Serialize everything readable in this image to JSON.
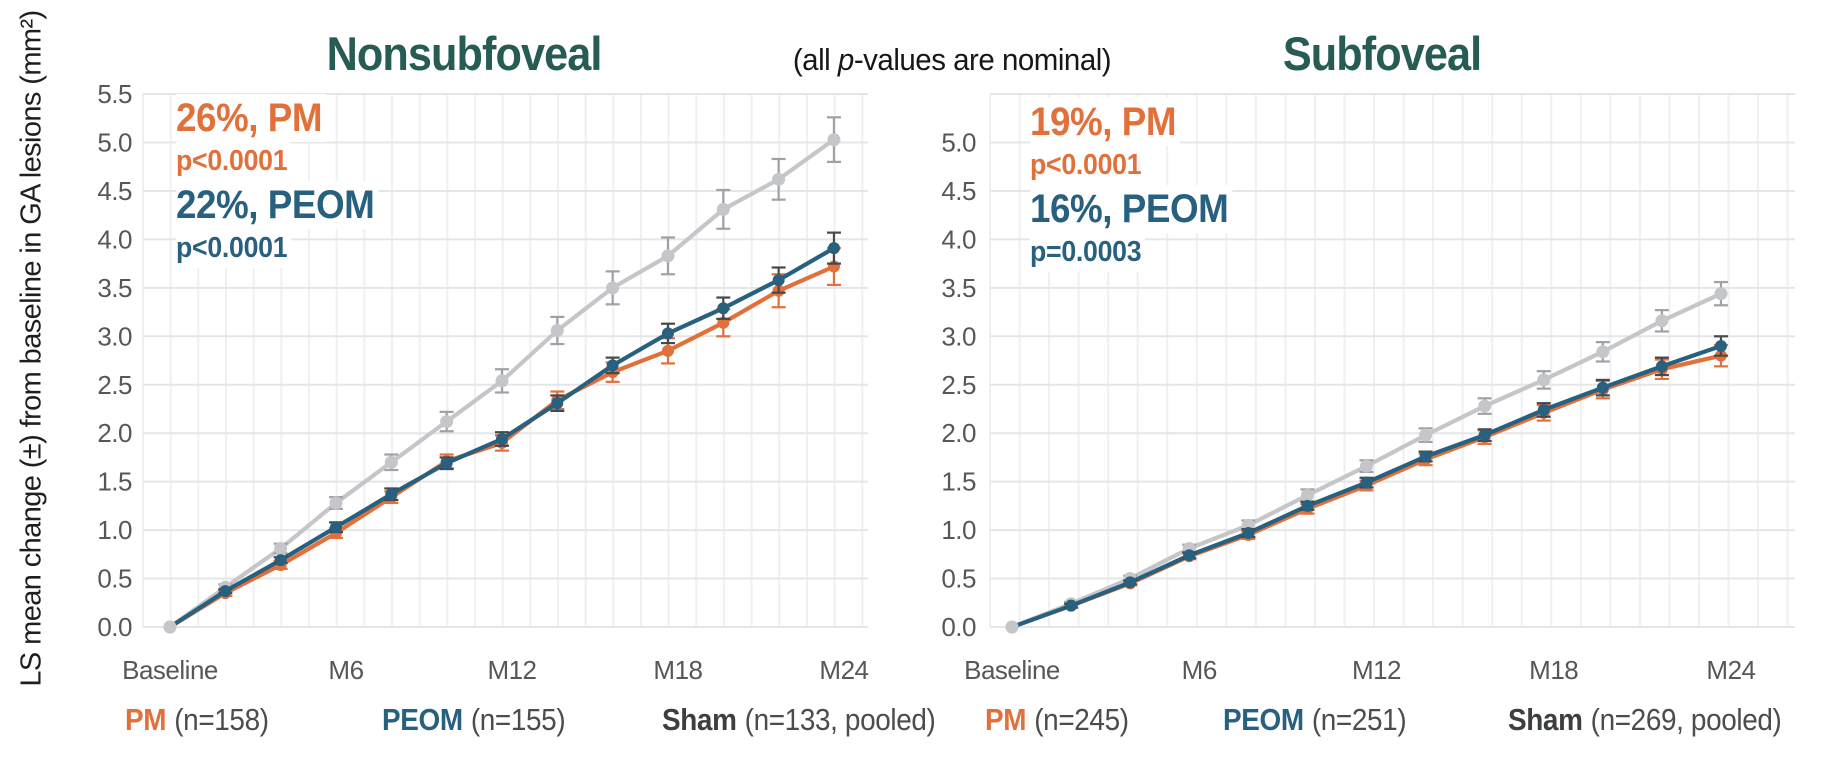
{
  "figure": {
    "y_axis_title": "LS mean change (±) from baseline in GA lesions (mm²)",
    "center_note": {
      "prefix": "(all ",
      "italic": "p",
      "suffix": "-values are nominal)"
    }
  },
  "chart_data": [
    {
      "type": "line",
      "title": "Nonsubfoveal",
      "xlabel": "",
      "ylabel": "LS mean change from baseline in GA lesions (mm²)",
      "months": [
        0,
        2,
        4,
        6,
        8,
        10,
        12,
        14,
        16,
        18,
        20,
        22,
        24
      ],
      "x_tick_labels": [
        {
          "month": 0,
          "label": "Baseline"
        },
        {
          "month": 6,
          "label": "M6"
        },
        {
          "month": 12,
          "label": "M12"
        },
        {
          "month": 18,
          "label": "M18"
        },
        {
          "month": 24,
          "label": "M24"
        }
      ],
      "ylim": [
        0,
        5.5
      ],
      "ytick_step": 0.5,
      "grid": true,
      "series": [
        {
          "name": "Sham",
          "color": "#c5c6c9",
          "err_color": "#9ea1a5",
          "values": [
            0.0,
            0.41,
            0.81,
            1.28,
            1.7,
            2.12,
            2.54,
            3.06,
            3.5,
            3.83,
            4.31,
            4.62,
            5.03
          ],
          "errors": [
            0.0,
            0.03,
            0.05,
            0.06,
            0.08,
            0.1,
            0.12,
            0.14,
            0.17,
            0.19,
            0.2,
            0.21,
            0.23
          ]
        },
        {
          "name": "PM",
          "color": "#e1703b",
          "err_color": "#e1703b",
          "values": [
            0.0,
            0.35,
            0.64,
            0.97,
            1.34,
            1.71,
            1.9,
            2.34,
            2.63,
            2.85,
            3.14,
            3.47,
            3.72
          ],
          "errors": [
            0.0,
            0.03,
            0.04,
            0.05,
            0.06,
            0.07,
            0.08,
            0.09,
            0.1,
            0.13,
            0.14,
            0.17,
            0.19
          ]
        },
        {
          "name": "PEOM",
          "color": "#28607f",
          "err_color": "#46494c",
          "values": [
            0.0,
            0.37,
            0.69,
            1.03,
            1.37,
            1.69,
            1.94,
            2.31,
            2.7,
            3.03,
            3.29,
            3.58,
            3.91
          ],
          "errors": [
            0.0,
            0.02,
            0.03,
            0.05,
            0.06,
            0.06,
            0.07,
            0.08,
            0.08,
            0.1,
            0.11,
            0.13,
            0.16
          ]
        }
      ],
      "annotations": [
        {
          "text": "26%, PM",
          "color": "#e1703b"
        },
        {
          "text": "p<0.0001",
          "color": "#e1703b"
        },
        {
          "text": "22%, PEOM",
          "color": "#28607f"
        },
        {
          "text": "p<0.0001",
          "color": "#28607f"
        }
      ],
      "legend": [
        {
          "label": "PM",
          "n": "(n=158)",
          "color": "#e1703b"
        },
        {
          "label": "PEOM",
          "n": "(n=155)",
          "color": "#28607f"
        },
        {
          "label": "Sham",
          "n": "(n=133, pooled)",
          "color": "#3c3f41"
        }
      ]
    },
    {
      "type": "line",
      "title": "Subfoveal",
      "xlabel": "",
      "ylabel": "LS mean change from baseline in GA lesions (mm²)",
      "months": [
        0,
        2,
        4,
        6,
        8,
        10,
        12,
        14,
        16,
        18,
        20,
        22,
        24
      ],
      "x_tick_labels": [
        {
          "month": 0,
          "label": "Baseline"
        },
        {
          "month": 6,
          "label": "M6"
        },
        {
          "month": 12,
          "label": "M12"
        },
        {
          "month": 18,
          "label": "M18"
        },
        {
          "month": 24,
          "label": "M24"
        }
      ],
      "ylim": [
        0,
        5.0
      ],
      "ytick_step": 0.5,
      "grid": true,
      "series": [
        {
          "name": "Sham",
          "color": "#c5c6c9",
          "err_color": "#9ea1a5",
          "values": [
            0.0,
            0.24,
            0.5,
            0.81,
            1.05,
            1.36,
            1.66,
            1.98,
            2.28,
            2.55,
            2.84,
            3.16,
            3.44
          ],
          "errors": [
            0.0,
            0.02,
            0.03,
            0.04,
            0.05,
            0.06,
            0.06,
            0.07,
            0.08,
            0.09,
            0.1,
            0.11,
            0.12
          ]
        },
        {
          "name": "PM",
          "color": "#e1703b",
          "err_color": "#e1703b",
          "values": [
            0.0,
            0.22,
            0.45,
            0.73,
            0.95,
            1.22,
            1.46,
            1.73,
            1.96,
            2.21,
            2.45,
            2.66,
            2.8
          ],
          "errors": [
            0.0,
            0.02,
            0.02,
            0.03,
            0.04,
            0.05,
            0.05,
            0.06,
            0.07,
            0.08,
            0.09,
            0.1,
            0.11
          ]
        },
        {
          "name": "PEOM",
          "color": "#28607f",
          "err_color": "#46494c",
          "values": [
            0.0,
            0.22,
            0.46,
            0.74,
            0.97,
            1.25,
            1.49,
            1.76,
            1.98,
            2.24,
            2.47,
            2.69,
            2.9
          ],
          "errors": [
            0.0,
            0.02,
            0.02,
            0.03,
            0.04,
            0.04,
            0.05,
            0.05,
            0.06,
            0.07,
            0.08,
            0.09,
            0.1
          ]
        }
      ],
      "annotations": [
        {
          "text": "19%, PM",
          "color": "#e1703b"
        },
        {
          "text": "p<0.0001",
          "color": "#e1703b"
        },
        {
          "text": "16%, PEOM",
          "color": "#28607f"
        },
        {
          "text": "p=0.0003",
          "color": "#28607f"
        }
      ],
      "legend": [
        {
          "label": "PM",
          "n": "(n=245)",
          "color": "#e1703b"
        },
        {
          "label": "PEOM",
          "n": "(n=251)",
          "color": "#28607f"
        },
        {
          "label": "Sham",
          "n": "(n=269, pooled)",
          "color": "#3c3f41"
        }
      ]
    }
  ]
}
